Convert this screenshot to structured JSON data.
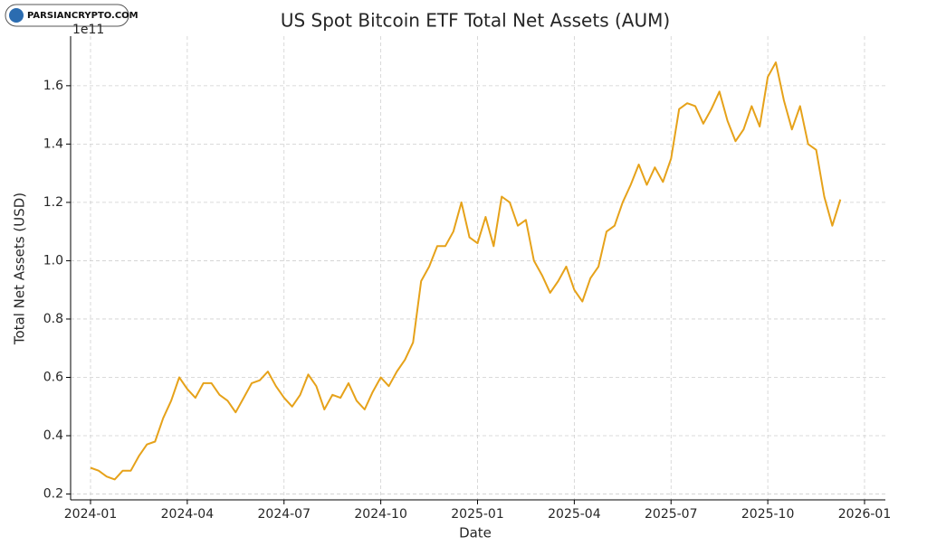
{
  "watermark": "PARSIANCRYPTO.COM",
  "chart_data": {
    "type": "line",
    "title": "US Spot Bitcoin ETF Total Net Assets (AUM)",
    "xlabel": "Date",
    "ylabel": "Total Net Assets (USD)",
    "y_offset_label": "1e11",
    "x": [
      "2024-01",
      "2024-01",
      "2024-01",
      "2024-01",
      "2024-02",
      "2024-02",
      "2024-02",
      "2024-02",
      "2024-03",
      "2024-03",
      "2024-03",
      "2024-03",
      "2024-04",
      "2024-04",
      "2024-04",
      "2024-04",
      "2024-05",
      "2024-05",
      "2024-05",
      "2024-05",
      "2024-06",
      "2024-06",
      "2024-06",
      "2024-06",
      "2024-07",
      "2024-07",
      "2024-07",
      "2024-07",
      "2024-08",
      "2024-08",
      "2024-08",
      "2024-08",
      "2024-09",
      "2024-09",
      "2024-09",
      "2024-09",
      "2024-10",
      "2024-10",
      "2024-10",
      "2024-10",
      "2024-11",
      "2024-11",
      "2024-11",
      "2024-11",
      "2024-12",
      "2024-12",
      "2024-12",
      "2024-12",
      "2025-01",
      "2025-01",
      "2025-01",
      "2025-01",
      "2025-02",
      "2025-02",
      "2025-02",
      "2025-02",
      "2025-03",
      "2025-03",
      "2025-03",
      "2025-03",
      "2025-04",
      "2025-04",
      "2025-04",
      "2025-04",
      "2025-05",
      "2025-05",
      "2025-05",
      "2025-05",
      "2025-06",
      "2025-06",
      "2025-06",
      "2025-06",
      "2025-07",
      "2025-07",
      "2025-07",
      "2025-07",
      "2025-08",
      "2025-08",
      "2025-08",
      "2025-08",
      "2025-09",
      "2025-09",
      "2025-09",
      "2025-09",
      "2025-10",
      "2025-10",
      "2025-10",
      "2025-10",
      "2025-11",
      "2025-11",
      "2025-11",
      "2025-11",
      "2025-12",
      "2025-12"
    ],
    "series": [
      {
        "name": "Total Net Assets",
        "color": "#e6a21a",
        "values": [
          0.29,
          0.28,
          0.26,
          0.25,
          0.28,
          0.28,
          0.33,
          0.37,
          0.38,
          0.46,
          0.52,
          0.6,
          0.56,
          0.53,
          0.58,
          0.58,
          0.54,
          0.52,
          0.48,
          0.53,
          0.58,
          0.59,
          0.62,
          0.57,
          0.53,
          0.5,
          0.54,
          0.61,
          0.57,
          0.49,
          0.54,
          0.53,
          0.58,
          0.52,
          0.49,
          0.55,
          0.6,
          0.57,
          0.62,
          0.66,
          0.72,
          0.93,
          0.98,
          1.05,
          1.05,
          1.1,
          1.2,
          1.08,
          1.06,
          1.15,
          1.05,
          1.22,
          1.2,
          1.12,
          1.14,
          1.0,
          0.95,
          0.89,
          0.93,
          0.98,
          0.9,
          0.86,
          0.94,
          0.98,
          1.1,
          1.12,
          1.2,
          1.26,
          1.33,
          1.26,
          1.32,
          1.27,
          1.35,
          1.52,
          1.54,
          1.53,
          1.47,
          1.52,
          1.58,
          1.48,
          1.41,
          1.45,
          1.53,
          1.46,
          1.63,
          1.68,
          1.55,
          1.45,
          1.53,
          1.4,
          1.38,
          1.22,
          1.12,
          1.21
        ]
      }
    ],
    "xlim": [
      "2024-01",
      "2026-01"
    ],
    "xticks": [
      "2024-01",
      "2024-04",
      "2024-07",
      "2024-10",
      "2025-01",
      "2025-04",
      "2025-07",
      "2025-10",
      "2026-01"
    ],
    "ylim": [
      0.18,
      1.77
    ],
    "yticks": [
      0.2,
      0.4,
      0.6,
      0.8,
      {
        "value": 1,
        "label": "1.0"
      },
      1.2,
      1.4,
      1.6
    ],
    "grid": true
  }
}
